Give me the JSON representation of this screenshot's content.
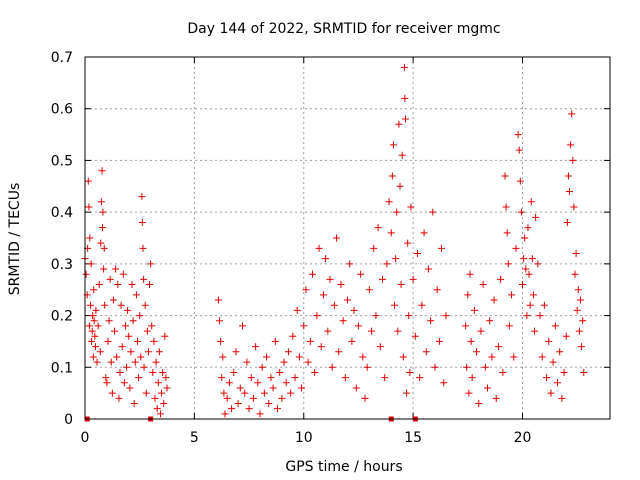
{
  "chart_data": {
    "type": "scatter",
    "title": "Day 144 of 2022, SRMTID for receiver mgmc",
    "xlabel": "GPS time / hours",
    "ylabel": "SRMTID / TECUs",
    "xlim": [
      0,
      24
    ],
    "ylim": [
      0,
      0.7
    ],
    "x_ticks": [
      0,
      5,
      10,
      15,
      20
    ],
    "x_tick_labels": [
      "0",
      "5",
      "10",
      "15",
      "20"
    ],
    "y_ticks": [
      0,
      0.1,
      0.2,
      0.3,
      0.4,
      0.5,
      0.6,
      0.7
    ],
    "y_tick_labels": [
      "0",
      "0.1",
      "0.2",
      "0.3",
      "0.4",
      "0.5",
      "0.6",
      "0.7"
    ],
    "grid": true,
    "marker": "+",
    "color": "#e00000",
    "series": [
      {
        "name": "SRMTID",
        "points": [
          [
            0.0,
            0.31
          ],
          [
            0.05,
            0.28
          ],
          [
            0.1,
            0.24
          ],
          [
            0.12,
            0.33
          ],
          [
            0.15,
            0.46
          ],
          [
            0.18,
            0.41
          ],
          [
            0.2,
            0.18
          ],
          [
            0.22,
            0.35
          ],
          [
            0.25,
            0.22
          ],
          [
            0.28,
            0.3
          ],
          [
            0.3,
            0.15
          ],
          [
            0.33,
            0.17
          ],
          [
            0.35,
            0.2
          ],
          [
            0.38,
            0.12
          ],
          [
            0.4,
            0.25
          ],
          [
            0.42,
            0.19
          ],
          [
            0.45,
            0.16
          ],
          [
            0.48,
            0.14
          ],
          [
            0.5,
            0.21
          ],
          [
            0.55,
            0.11
          ],
          [
            0.6,
            0.18
          ],
          [
            0.65,
            0.26
          ],
          [
            0.7,
            0.13
          ],
          [
            0.72,
            0.34
          ],
          [
            0.75,
            0.42
          ],
          [
            0.78,
            0.48
          ],
          [
            0.8,
            0.37
          ],
          [
            0.82,
            0.4
          ],
          [
            0.85,
            0.29
          ],
          [
            0.88,
            0.33
          ],
          [
            0.9,
            0.22
          ],
          [
            0.95,
            0.08
          ],
          [
            1.0,
            0.07
          ],
          [
            1.05,
            0.15
          ],
          [
            1.1,
            0.19
          ],
          [
            1.15,
            0.27
          ],
          [
            1.2,
            0.11
          ],
          [
            1.25,
            0.05
          ],
          [
            1.3,
            0.23
          ],
          [
            1.35,
            0.17
          ],
          [
            1.4,
            0.29
          ],
          [
            1.45,
            0.12
          ],
          [
            1.5,
            0.26
          ],
          [
            1.55,
            0.04
          ],
          [
            1.6,
            0.09
          ],
          [
            1.65,
            0.22
          ],
          [
            1.7,
            0.14
          ],
          [
            1.75,
            0.28
          ],
          [
            1.8,
            0.07
          ],
          [
            1.85,
            0.18
          ],
          [
            1.9,
            0.1
          ],
          [
            1.95,
            0.21
          ],
          [
            2.0,
            0.16
          ],
          [
            2.05,
            0.06
          ],
          [
            2.1,
            0.13
          ],
          [
            2.15,
            0.26
          ],
          [
            2.2,
            0.19
          ],
          [
            2.25,
            0.03
          ],
          [
            2.3,
            0.11
          ],
          [
            2.35,
            0.24
          ],
          [
            2.4,
            0.15
          ],
          [
            2.45,
            0.08
          ],
          [
            2.5,
            0.2
          ],
          [
            2.55,
            0.12
          ],
          [
            2.6,
            0.43
          ],
          [
            2.62,
            0.38
          ],
          [
            2.65,
            0.33
          ],
          [
            2.68,
            0.27
          ],
          [
            2.7,
            0.1
          ],
          [
            2.75,
            0.22
          ],
          [
            2.8,
            0.05
          ],
          [
            2.85,
            0.17
          ],
          [
            2.9,
            0.13
          ],
          [
            2.95,
            0.26
          ],
          [
            3.0,
            0.3
          ],
          [
            3.05,
            0.18
          ],
          [
            3.1,
            0.09
          ],
          [
            3.15,
            0.15
          ],
          [
            3.2,
            0.04
          ],
          [
            3.25,
            0.11
          ],
          [
            3.3,
            0.02
          ],
          [
            3.35,
            0.07
          ],
          [
            3.4,
            0.13
          ],
          [
            3.45,
            0.01
          ],
          [
            3.5,
            0.05
          ],
          [
            3.55,
            0.09
          ],
          [
            3.6,
            0.03
          ],
          [
            3.65,
            0.16
          ],
          [
            3.7,
            0.08
          ],
          [
            3.75,
            0.06
          ],
          [
            6.1,
            0.23
          ],
          [
            6.15,
            0.19
          ],
          [
            6.2,
            0.15
          ],
          [
            6.25,
            0.08
          ],
          [
            6.3,
            0.12
          ],
          [
            6.35,
            0.05
          ],
          [
            6.4,
            0.01
          ],
          [
            6.5,
            0.04
          ],
          [
            6.6,
            0.07
          ],
          [
            6.7,
            0.02
          ],
          [
            6.8,
            0.09
          ],
          [
            6.9,
            0.13
          ],
          [
            7.0,
            0.03
          ],
          [
            7.1,
            0.06
          ],
          [
            7.2,
            0.18
          ],
          [
            7.3,
            0.05
          ],
          [
            7.4,
            0.11
          ],
          [
            7.5,
            0.02
          ],
          [
            7.6,
            0.08
          ],
          [
            7.7,
            0.04
          ],
          [
            7.8,
            0.14
          ],
          [
            7.9,
            0.07
          ],
          [
            8.0,
            0.01
          ],
          [
            8.1,
            0.1
          ],
          [
            8.2,
            0.05
          ],
          [
            8.3,
            0.12
          ],
          [
            8.4,
            0.03
          ],
          [
            8.5,
            0.08
          ],
          [
            8.6,
            0.06
          ],
          [
            8.7,
            0.15
          ],
          [
            8.8,
            0.02
          ],
          [
            8.9,
            0.09
          ],
          [
            9.0,
            0.04
          ],
          [
            9.1,
            0.11
          ],
          [
            9.2,
            0.07
          ],
          [
            9.3,
            0.13
          ],
          [
            9.4,
            0.05
          ],
          [
            9.5,
            0.16
          ],
          [
            9.6,
            0.08
          ],
          [
            9.7,
            0.21
          ],
          [
            9.8,
            0.12
          ],
          [
            9.9,
            0.06
          ],
          [
            10.0,
            0.18
          ],
          [
            10.1,
            0.25
          ],
          [
            10.2,
            0.11
          ],
          [
            10.3,
            0.15
          ],
          [
            10.4,
            0.28
          ],
          [
            10.5,
            0.09
          ],
          [
            10.6,
            0.2
          ],
          [
            10.7,
            0.33
          ],
          [
            10.8,
            0.14
          ],
          [
            10.9,
            0.24
          ],
          [
            11.0,
            0.31
          ],
          [
            11.1,
            0.17
          ],
          [
            11.2,
            0.27
          ],
          [
            11.3,
            0.1
          ],
          [
            11.4,
            0.22
          ],
          [
            11.5,
            0.35
          ],
          [
            11.6,
            0.13
          ],
          [
            11.7,
            0.26
          ],
          [
            11.8,
            0.19
          ],
          [
            11.9,
            0.08
          ],
          [
            12.0,
            0.23
          ],
          [
            12.1,
            0.3
          ],
          [
            12.2,
            0.15
          ],
          [
            12.3,
            0.21
          ],
          [
            12.4,
            0.06
          ],
          [
            12.5,
            0.18
          ],
          [
            12.6,
            0.28
          ],
          [
            12.7,
            0.12
          ],
          [
            12.8,
            0.04
          ],
          [
            12.9,
            0.1
          ],
          [
            13.0,
            0.25
          ],
          [
            13.1,
            0.17
          ],
          [
            13.2,
            0.33
          ],
          [
            13.3,
            0.2
          ],
          [
            13.4,
            0.37
          ],
          [
            13.5,
            0.14
          ],
          [
            13.6,
            0.27
          ],
          [
            13.7,
            0.08
          ],
          [
            13.8,
            0.3
          ],
          [
            13.9,
            0.42
          ],
          [
            14.0,
            0.36
          ],
          [
            14.05,
            0.47
          ],
          [
            14.1,
            0.53
          ],
          [
            14.15,
            0.22
          ],
          [
            14.2,
            0.31
          ],
          [
            14.25,
            0.4
          ],
          [
            14.3,
            0.17
          ],
          [
            14.35,
            0.57
          ],
          [
            14.4,
            0.45
          ],
          [
            14.45,
            0.26
          ],
          [
            14.5,
            0.51
          ],
          [
            14.55,
            0.12
          ],
          [
            14.6,
            0.68
          ],
          [
            14.62,
            0.62
          ],
          [
            14.65,
            0.58
          ],
          [
            14.7,
            0.05
          ],
          [
            14.75,
            0.34
          ],
          [
            14.8,
            0.2
          ],
          [
            14.85,
            0.09
          ],
          [
            14.9,
            0.41
          ],
          [
            15.0,
            0.27
          ],
          [
            15.1,
            0.16
          ],
          [
            15.2,
            0.32
          ],
          [
            15.3,
            0.08
          ],
          [
            15.4,
            0.22
          ],
          [
            15.5,
            0.36
          ],
          [
            15.6,
            0.13
          ],
          [
            15.7,
            0.29
          ],
          [
            15.8,
            0.19
          ],
          [
            15.9,
            0.4
          ],
          [
            16.0,
            0.1
          ],
          [
            16.1,
            0.25
          ],
          [
            16.2,
            0.15
          ],
          [
            16.3,
            0.33
          ],
          [
            16.4,
            0.07
          ],
          [
            16.5,
            0.2
          ],
          [
            17.4,
            0.18
          ],
          [
            17.45,
            0.1
          ],
          [
            17.5,
            0.24
          ],
          [
            17.55,
            0.05
          ],
          [
            17.6,
            0.28
          ],
          [
            17.65,
            0.15
          ],
          [
            17.7,
            0.08
          ],
          [
            17.8,
            0.21
          ],
          [
            17.9,
            0.13
          ],
          [
            18.0,
            0.03
          ],
          [
            18.1,
            0.17
          ],
          [
            18.2,
            0.26
          ],
          [
            18.3,
            0.1
          ],
          [
            18.4,
            0.06
          ],
          [
            18.5,
            0.19
          ],
          [
            18.6,
            0.12
          ],
          [
            18.7,
            0.23
          ],
          [
            18.8,
            0.04
          ],
          [
            18.9,
            0.14
          ],
          [
            19.0,
            0.27
          ],
          [
            19.1,
            0.09
          ],
          [
            19.2,
            0.47
          ],
          [
            19.25,
            0.41
          ],
          [
            19.3,
            0.36
          ],
          [
            19.35,
            0.3
          ],
          [
            19.4,
            0.18
          ],
          [
            19.5,
            0.24
          ],
          [
            19.6,
            0.12
          ],
          [
            19.7,
            0.33
          ],
          [
            19.8,
            0.55
          ],
          [
            19.85,
            0.52
          ],
          [
            19.9,
            0.46
          ],
          [
            19.95,
            0.4
          ],
          [
            20.0,
            0.26
          ],
          [
            20.05,
            0.31
          ],
          [
            20.1,
            0.35
          ],
          [
            20.15,
            0.29
          ],
          [
            20.2,
            0.2
          ],
          [
            20.25,
            0.37
          ],
          [
            20.3,
            0.28
          ],
          [
            20.35,
            0.22
          ],
          [
            20.4,
            0.42
          ],
          [
            20.45,
            0.31
          ],
          [
            20.5,
            0.24
          ],
          [
            20.55,
            0.17
          ],
          [
            20.6,
            0.39
          ],
          [
            20.7,
            0.3
          ],
          [
            20.8,
            0.2
          ],
          [
            20.9,
            0.12
          ],
          [
            21.0,
            0.22
          ],
          [
            21.1,
            0.08
          ],
          [
            21.2,
            0.15
          ],
          [
            21.3,
            0.05
          ],
          [
            21.4,
            0.11
          ],
          [
            21.5,
            0.18
          ],
          [
            21.6,
            0.07
          ],
          [
            21.7,
            0.13
          ],
          [
            21.8,
            0.04
          ],
          [
            21.9,
            0.09
          ],
          [
            22.0,
            0.16
          ],
          [
            22.05,
            0.38
          ],
          [
            22.1,
            0.47
          ],
          [
            22.15,
            0.44
          ],
          [
            22.2,
            0.53
          ],
          [
            22.25,
            0.59
          ],
          [
            22.3,
            0.5
          ],
          [
            22.35,
            0.41
          ],
          [
            22.4,
            0.28
          ],
          [
            22.45,
            0.32
          ],
          [
            22.5,
            0.21
          ],
          [
            22.55,
            0.25
          ],
          [
            22.6,
            0.17
          ],
          [
            22.65,
            0.23
          ],
          [
            22.7,
            0.14
          ],
          [
            22.75,
            0.19
          ],
          [
            22.8,
            0.09
          ]
        ]
      }
    ],
    "baseline_markers": [
      0.1,
      3.0,
      14.0,
      15.1
    ]
  }
}
